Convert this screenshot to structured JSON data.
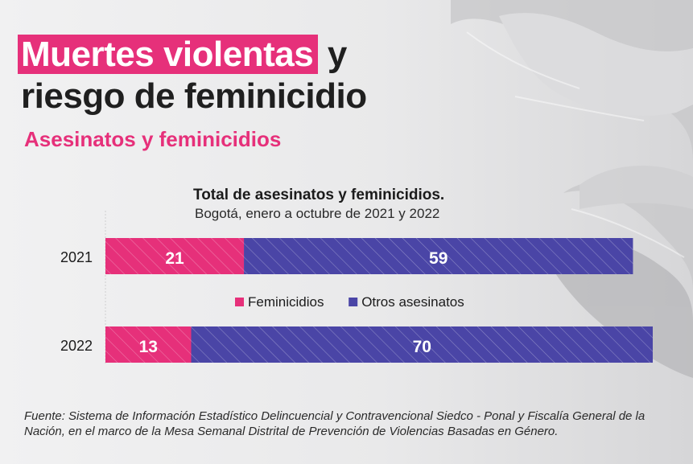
{
  "header": {
    "title_highlight": "Muertes violentas",
    "title_rest": " y",
    "title_line2": "riesgo de feminicidio",
    "subtitle": "Asesinatos y feminicidios"
  },
  "chart_data": {
    "type": "bar",
    "orientation": "horizontal",
    "stacked": true,
    "title": "Total de asesinatos y feminicidios.",
    "subtitle": "Bogotá, enero a octubre de 2021 y 2022",
    "categories": [
      "2021",
      "2022"
    ],
    "series": [
      {
        "name": "Feminicidios",
        "values": [
          21,
          13
        ],
        "color": "#e6307a"
      },
      {
        "name": "Otros asesinatos",
        "values": [
          59,
          70
        ],
        "color": "#4a45a6"
      }
    ],
    "legend_position": "between bars",
    "grid": false,
    "data_labels": true
  },
  "footer": {
    "source": "Fuente: Sistema de Información Estadístico Delincuencial y Contravencional Siedco - Ponal y Fiscalía General de la Nación, en el marco de la Mesa Semanal Distrital de Prevención de Violencias Basadas en Género."
  },
  "colors": {
    "accent": "#e6307a",
    "secondary": "#4a45a6",
    "background": "#f1f1f2",
    "text": "#1f1f1f"
  }
}
